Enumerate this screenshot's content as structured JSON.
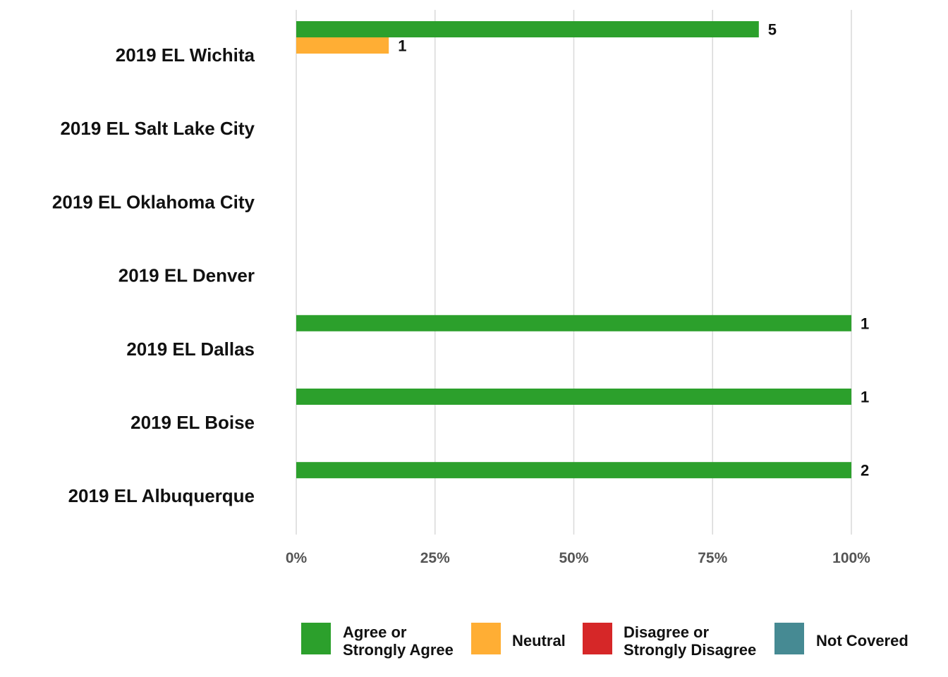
{
  "chart_data": {
    "type": "bar",
    "orientation": "horizontal",
    "categories": [
      "2019 EL Wichita",
      "2019 EL Salt Lake City",
      "2019 EL Oklahoma City",
      "2019 EL Denver",
      "2019 EL Dallas",
      "2019 EL Boise",
      "2019 EL Albuquerque"
    ],
    "series": [
      {
        "name": "Agree or Strongly Agree",
        "color": "#2ca02c",
        "percent": [
          83.33,
          null,
          null,
          null,
          100,
          100,
          100
        ],
        "counts": [
          "5",
          "",
          "",
          "",
          "1",
          "1",
          "2"
        ]
      },
      {
        "name": "Neutral",
        "color": "#ffae34",
        "percent": [
          16.67,
          null,
          null,
          null,
          null,
          null,
          null
        ],
        "counts": [
          "1",
          "",
          "",
          "",
          "",
          "",
          ""
        ]
      },
      {
        "name": "Disagree or Strongly Disagree",
        "color": "#d62728",
        "percent": [
          null,
          null,
          null,
          null,
          null,
          null,
          null
        ],
        "counts": [
          "",
          "",
          "",
          "",
          "",
          "",
          ""
        ]
      },
      {
        "name": "Not Covered",
        "color": "#468a93",
        "percent": [
          null,
          null,
          null,
          null,
          null,
          null,
          null
        ],
        "counts": [
          "",
          "",
          "",
          "",
          "",
          "",
          ""
        ]
      }
    ],
    "xlim": [
      0,
      100
    ],
    "xticks": [
      "0%",
      "25%",
      "50%",
      "75%",
      "100%"
    ],
    "xtick_values": [
      0,
      25,
      50,
      75,
      100
    ],
    "grid": true,
    "legend_position": "bottom",
    "legend_labels": [
      [
        "Agree or",
        "Strongly Agree"
      ],
      [
        "Neutral"
      ],
      [
        "Disagree or",
        "Strongly Disagree"
      ],
      [
        "Not Covered"
      ]
    ]
  }
}
